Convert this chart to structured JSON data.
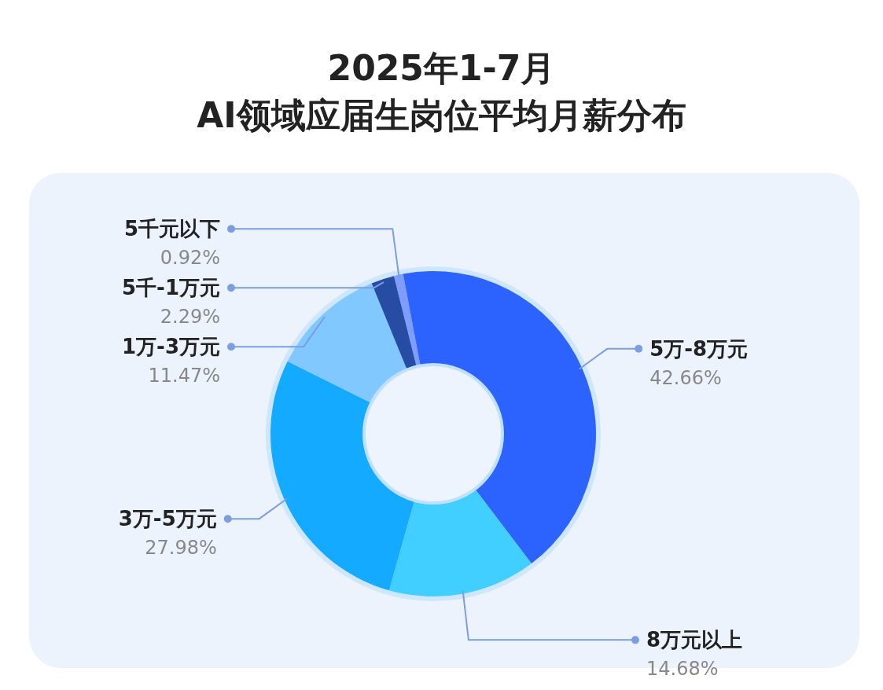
{
  "chart_data": {
    "type": "donut",
    "title": "2025年1-7月\nAI领域应届生岗位平均月薪分布",
    "categories": [
      "5千元以下",
      "5万-8万元",
      "8万元以上",
      "3万-5万元",
      "1万-3万元",
      "5千-1万元"
    ],
    "values": [
      0.92,
      42.66,
      14.68,
      27.98,
      11.47,
      2.29
    ],
    "value_labels": [
      "0.92%",
      "42.66%",
      "14.68%",
      "27.98%",
      "11.47%",
      "2.29%"
    ],
    "colors": [
      "#7f9dff",
      "#2c63ff",
      "#40cfff",
      "#14aaff",
      "#80c8ff",
      "#264ca3"
    ],
    "legend": false
  }
}
